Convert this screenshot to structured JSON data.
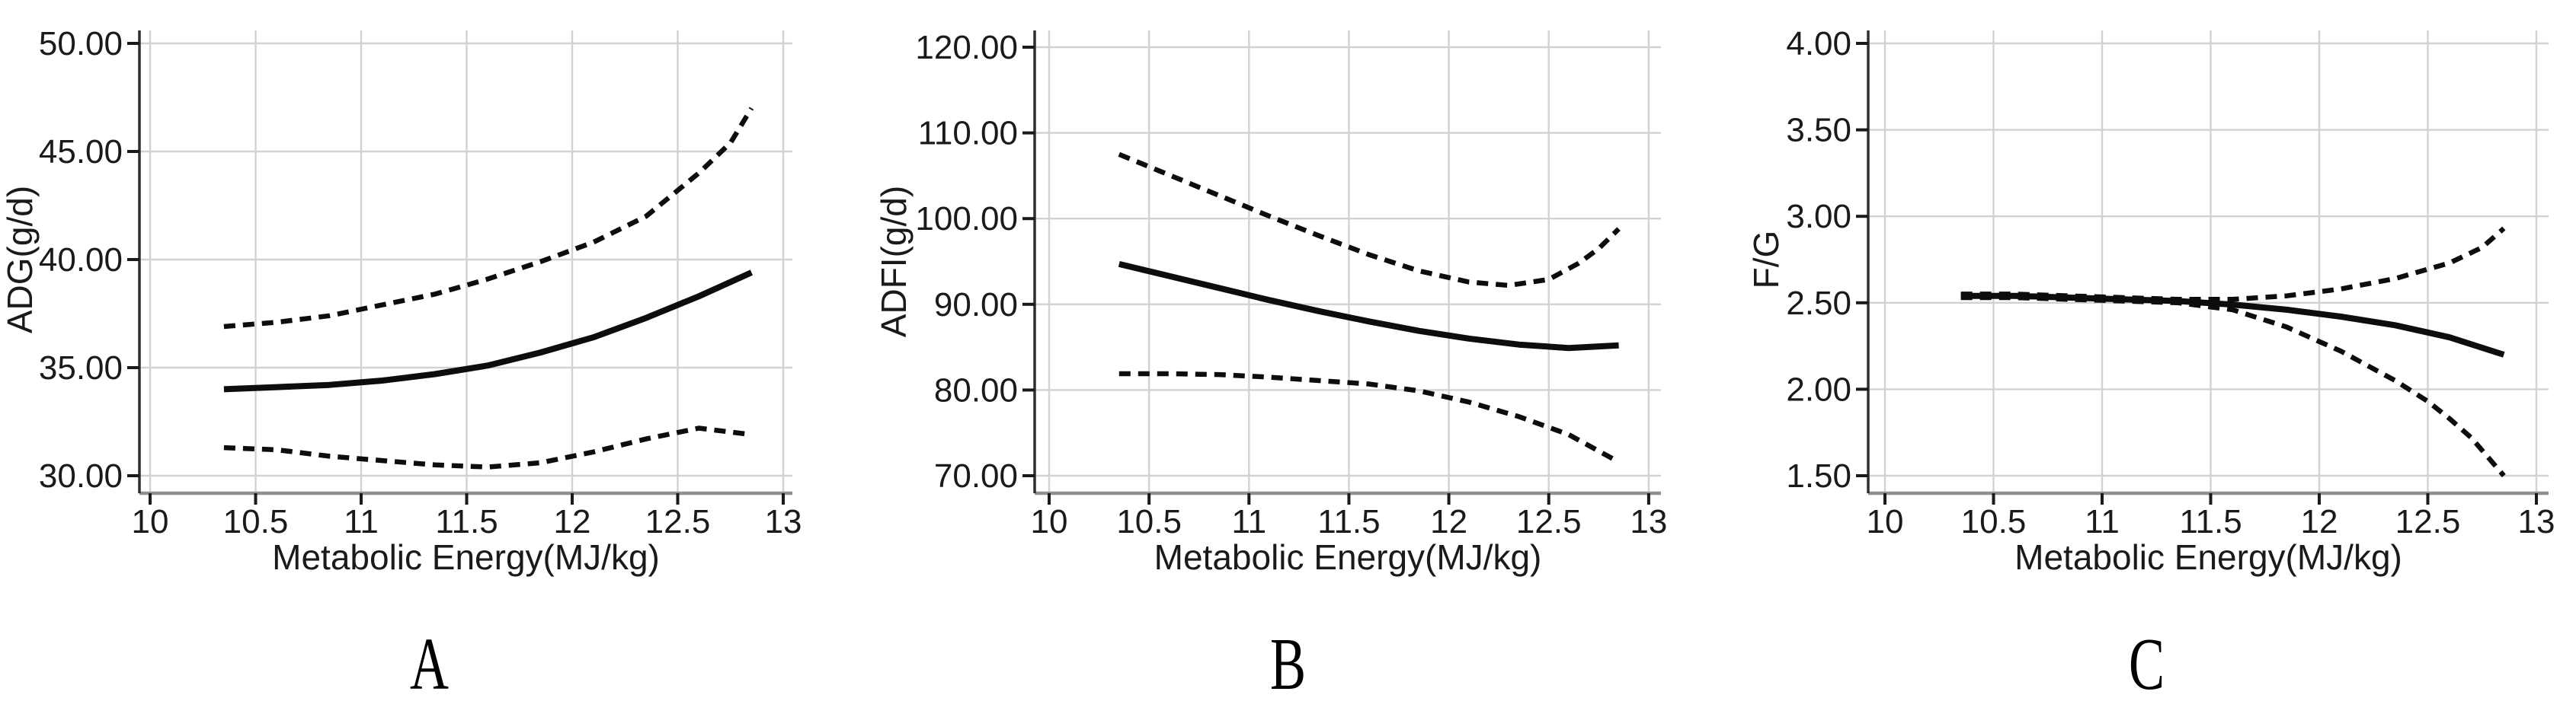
{
  "figure": {
    "background": "#ffffff",
    "colors": {
      "line": "#0d0d0d",
      "grid": "#d2d2d2",
      "axis_left": "#2f2f2f",
      "axis_bottom": "#909090",
      "tick_mark": "#1a1a1a",
      "text": "#1a1a1a"
    }
  },
  "chart_data": [
    {
      "type": "line",
      "panel_label": "A",
      "title": "",
      "xlabel": "Metabolic Energy(MJ/kg)",
      "ylabel": "ADG(g/d)",
      "xlim": [
        10,
        13
      ],
      "ylim": [
        30,
        50
      ],
      "grid": true,
      "legend": null,
      "x_ticks": [
        10,
        10.5,
        11,
        11.5,
        12,
        12.5,
        13
      ],
      "x_tick_labels": [
        "10",
        "10.5",
        "11",
        "11.5",
        "12",
        "12.5",
        "13"
      ],
      "y_ticks": [
        30,
        35,
        40,
        45,
        50
      ],
      "y_tick_labels": [
        "30.00",
        "35.00",
        "40.00",
        "45.00",
        "50.00"
      ],
      "series": [
        {
          "name": "upper dashed band",
          "style": "dashed",
          "points": [
            [
              10.35,
              36.9
            ],
            [
              10.6,
              37.1
            ],
            [
              10.85,
              37.4
            ],
            [
              11.1,
              37.9
            ],
            [
              11.35,
              38.4
            ],
            [
              11.6,
              39.1
            ],
            [
              11.85,
              39.9
            ],
            [
              12.1,
              40.8
            ],
            [
              12.35,
              42.0
            ],
            [
              12.6,
              44.0
            ],
            [
              12.75,
              45.4
            ],
            [
              12.85,
              47.0
            ]
          ]
        },
        {
          "name": "solid mean line",
          "style": "solid",
          "points": [
            [
              10.35,
              34.0
            ],
            [
              10.6,
              34.1
            ],
            [
              10.85,
              34.2
            ],
            [
              11.1,
              34.4
            ],
            [
              11.35,
              34.7
            ],
            [
              11.6,
              35.1
            ],
            [
              11.85,
              35.7
            ],
            [
              12.1,
              36.4
            ],
            [
              12.35,
              37.3
            ],
            [
              12.6,
              38.3
            ],
            [
              12.85,
              39.4
            ]
          ]
        },
        {
          "name": "lower dashed band",
          "style": "dashed",
          "points": [
            [
              10.35,
              31.3
            ],
            [
              10.6,
              31.2
            ],
            [
              10.85,
              30.9
            ],
            [
              11.1,
              30.7
            ],
            [
              11.35,
              30.5
            ],
            [
              11.6,
              30.4
            ],
            [
              11.85,
              30.6
            ],
            [
              12.1,
              31.1
            ],
            [
              12.35,
              31.7
            ],
            [
              12.6,
              32.2
            ],
            [
              12.85,
              31.9
            ]
          ]
        }
      ]
    },
    {
      "type": "line",
      "panel_label": "B",
      "title": "",
      "xlabel": "Metabolic Energy(MJ/kg)",
      "ylabel": "ADFI(g/d)",
      "xlim": [
        10,
        13
      ],
      "ylim": [
        70,
        120
      ],
      "grid": true,
      "legend": null,
      "x_ticks": [
        10,
        10.5,
        11,
        11.5,
        12,
        12.5,
        13
      ],
      "x_tick_labels": [
        "10",
        "10.5",
        "11",
        "11.5",
        "12",
        "12.5",
        "13"
      ],
      "y_ticks": [
        70,
        80,
        90,
        100,
        110,
        120
      ],
      "y_tick_labels": [
        "70.00",
        "80.00",
        "90.00",
        "100.00",
        "110.00",
        "120.00"
      ],
      "series": [
        {
          "name": "upper dashed band",
          "style": "dashed",
          "points": [
            [
              10.35,
              107.5
            ],
            [
              10.6,
              105.1
            ],
            [
              10.85,
              102.7
            ],
            [
              11.1,
              100.3
            ],
            [
              11.35,
              98.0
            ],
            [
              11.6,
              95.8
            ],
            [
              11.85,
              93.9
            ],
            [
              12.1,
              92.6
            ],
            [
              12.3,
              92.2
            ],
            [
              12.5,
              92.9
            ],
            [
              12.65,
              94.8
            ],
            [
              12.75,
              96.5
            ],
            [
              12.85,
              98.8
            ]
          ]
        },
        {
          "name": "solid mean line",
          "style": "solid",
          "points": [
            [
              10.35,
              94.7
            ],
            [
              10.6,
              93.3
            ],
            [
              10.85,
              91.9
            ],
            [
              11.1,
              90.5
            ],
            [
              11.35,
              89.2
            ],
            [
              11.6,
              88.0
            ],
            [
              11.85,
              86.9
            ],
            [
              12.1,
              86.0
            ],
            [
              12.35,
              85.3
            ],
            [
              12.6,
              84.9
            ],
            [
              12.85,
              85.2
            ]
          ]
        },
        {
          "name": "lower dashed band",
          "style": "dashed",
          "points": [
            [
              10.35,
              81.9
            ],
            [
              10.6,
              81.9
            ],
            [
              10.85,
              81.8
            ],
            [
              11.1,
              81.5
            ],
            [
              11.35,
              81.1
            ],
            [
              11.6,
              80.7
            ],
            [
              11.85,
              79.9
            ],
            [
              12.1,
              78.6
            ],
            [
              12.35,
              76.9
            ],
            [
              12.6,
              74.8
            ],
            [
              12.85,
              71.6
            ]
          ]
        }
      ]
    },
    {
      "type": "line",
      "panel_label": "C",
      "title": "",
      "xlabel": "Metabolic Energy(MJ/kg)",
      "ylabel": "F/G",
      "xlim": [
        10,
        13
      ],
      "ylim": [
        1.5,
        4.0
      ],
      "grid": true,
      "legend": null,
      "x_ticks": [
        10,
        10.5,
        11,
        11.5,
        12,
        12.5,
        13
      ],
      "x_tick_labels": [
        "10",
        "10.5",
        "11",
        "11.5",
        "12",
        "12.5",
        "13"
      ],
      "y_ticks": [
        1.5,
        2.0,
        2.5,
        3.0,
        3.5,
        4.0
      ],
      "y_tick_labels": [
        "1.50",
        "2.00",
        "2.50",
        "3.00",
        "3.50",
        "4.00"
      ],
      "series": [
        {
          "name": "upper dashed band",
          "style": "dashed",
          "points": [
            [
              10.35,
              2.55
            ],
            [
              10.6,
              2.55
            ],
            [
              10.85,
              2.54
            ],
            [
              11.1,
              2.53
            ],
            [
              11.35,
              2.52
            ],
            [
              11.6,
              2.52
            ],
            [
              11.85,
              2.54
            ],
            [
              12.1,
              2.58
            ],
            [
              12.35,
              2.64
            ],
            [
              12.6,
              2.73
            ],
            [
              12.75,
              2.82
            ],
            [
              12.85,
              2.93
            ]
          ]
        },
        {
          "name": "solid mean line",
          "style": "solid",
          "points": [
            [
              10.35,
              2.54
            ],
            [
              10.6,
              2.54
            ],
            [
              10.85,
              2.53
            ],
            [
              11.1,
              2.52
            ],
            [
              11.35,
              2.51
            ],
            [
              11.6,
              2.49
            ],
            [
              11.85,
              2.46
            ],
            [
              12.1,
              2.42
            ],
            [
              12.35,
              2.37
            ],
            [
              12.6,
              2.3
            ],
            [
              12.85,
              2.2
            ]
          ]
        },
        {
          "name": "lower dashed band",
          "style": "dashed",
          "points": [
            [
              10.35,
              2.53
            ],
            [
              10.6,
              2.53
            ],
            [
              10.85,
              2.52
            ],
            [
              11.1,
              2.51
            ],
            [
              11.35,
              2.5
            ],
            [
              11.6,
              2.46
            ],
            [
              11.85,
              2.36
            ],
            [
              12.1,
              2.22
            ],
            [
              12.35,
              2.05
            ],
            [
              12.5,
              1.93
            ],
            [
              12.6,
              1.83
            ],
            [
              12.7,
              1.72
            ],
            [
              12.85,
              1.5
            ]
          ]
        }
      ]
    }
  ]
}
